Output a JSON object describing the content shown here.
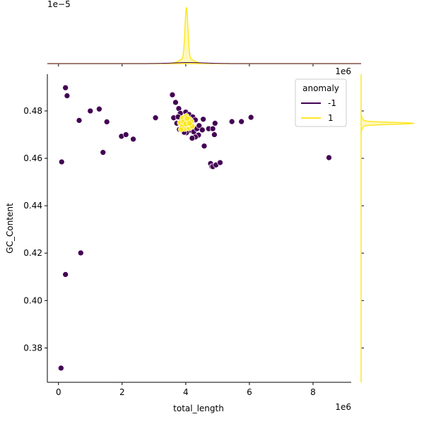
{
  "chart_data": {
    "type": "scatter",
    "xlabel": "total_length",
    "ylabel": "GC_Content",
    "x_offset_label": "1e6",
    "x_offset_label_top": "1e6",
    "top_marginal_offset_label": "1e−5",
    "xlim": [
      -0.35,
      9.2
    ],
    "ylim": [
      0.3655,
      0.4955
    ],
    "x_ticks": [
      0,
      2,
      4,
      6,
      8
    ],
    "y_ticks": [
      0.38,
      0.4,
      0.42,
      0.44,
      0.46,
      0.48
    ],
    "y_tick_labels": [
      "0.38",
      "0.40",
      "0.42",
      "0.44",
      "0.46",
      "0.48"
    ],
    "legend": {
      "title": "anomaly",
      "placement": "top-right",
      "entries": [
        {
          "label": "-1",
          "color": "#440154"
        },
        {
          "label": "1",
          "color": "#fde725"
        }
      ]
    },
    "series": [
      {
        "name": "-1",
        "color": "#440154",
        "points": [
          [
            0.22,
            0.4898
          ],
          [
            0.27,
            0.4864
          ],
          [
            0.1,
            0.4585
          ],
          [
            0.22,
            0.411
          ],
          [
            0.7,
            0.4201
          ],
          [
            0.08,
            0.3715
          ],
          [
            0.65,
            0.476
          ],
          [
            1.0,
            0.48
          ],
          [
            1.28,
            0.4808
          ],
          [
            1.52,
            0.4754
          ],
          [
            1.4,
            0.4625
          ],
          [
            1.98,
            0.4693
          ],
          [
            2.12,
            0.47
          ],
          [
            2.35,
            0.4681
          ],
          [
            3.05,
            0.4771
          ],
          [
            3.58,
            0.4868
          ],
          [
            3.68,
            0.4836
          ],
          [
            3.62,
            0.4771
          ],
          [
            3.78,
            0.481
          ],
          [
            3.83,
            0.479
          ],
          [
            3.76,
            0.4775
          ],
          [
            3.88,
            0.476
          ],
          [
            3.72,
            0.4748
          ],
          [
            3.8,
            0.4722
          ],
          [
            3.92,
            0.473
          ],
          [
            4.0,
            0.4795
          ],
          [
            4.1,
            0.4785
          ],
          [
            4.22,
            0.4775
          ],
          [
            4.3,
            0.4762
          ],
          [
            4.18,
            0.4745
          ],
          [
            4.1,
            0.4718
          ],
          [
            4.02,
            0.4708
          ],
          [
            4.25,
            0.4712
          ],
          [
            4.35,
            0.4725
          ],
          [
            4.42,
            0.4738
          ],
          [
            4.55,
            0.4765
          ],
          [
            4.52,
            0.472
          ],
          [
            4.4,
            0.4698
          ],
          [
            4.3,
            0.469
          ],
          [
            4.2,
            0.4685
          ],
          [
            4.58,
            0.4652
          ],
          [
            4.72,
            0.4725
          ],
          [
            4.85,
            0.4725
          ],
          [
            4.92,
            0.4748
          ],
          [
            4.9,
            0.47
          ],
          [
            4.78,
            0.4578
          ],
          [
            4.82,
            0.4565
          ],
          [
            4.85,
            0.4565
          ],
          [
            4.95,
            0.4572
          ],
          [
            5.08,
            0.4582
          ],
          [
            5.45,
            0.4755
          ],
          [
            5.75,
            0.4755
          ],
          [
            6.05,
            0.4773
          ],
          [
            8.5,
            0.4603
          ],
          [
            3.95,
            0.471
          ]
        ]
      },
      {
        "name": "1",
        "color": "#fde725",
        "points": [
          [
            3.82,
            0.475
          ],
          [
            3.9,
            0.477
          ],
          [
            3.95,
            0.4742
          ],
          [
            4.0,
            0.476
          ],
          [
            4.05,
            0.4735
          ],
          [
            4.08,
            0.4752
          ],
          [
            4.12,
            0.4765
          ],
          [
            4.15,
            0.474
          ],
          [
            3.98,
            0.4725
          ],
          [
            4.02,
            0.4778
          ],
          [
            4.1,
            0.4728
          ],
          [
            3.88,
            0.4735
          ],
          [
            4.18,
            0.4755
          ],
          [
            4.06,
            0.4745
          ],
          [
            3.93,
            0.4755
          ],
          [
            4.0,
            0.4745
          ],
          [
            4.04,
            0.4768
          ],
          [
            3.85,
            0.4722
          ],
          [
            4.2,
            0.4735
          ],
          [
            4.12,
            0.4748
          ]
        ]
      }
    ]
  }
}
